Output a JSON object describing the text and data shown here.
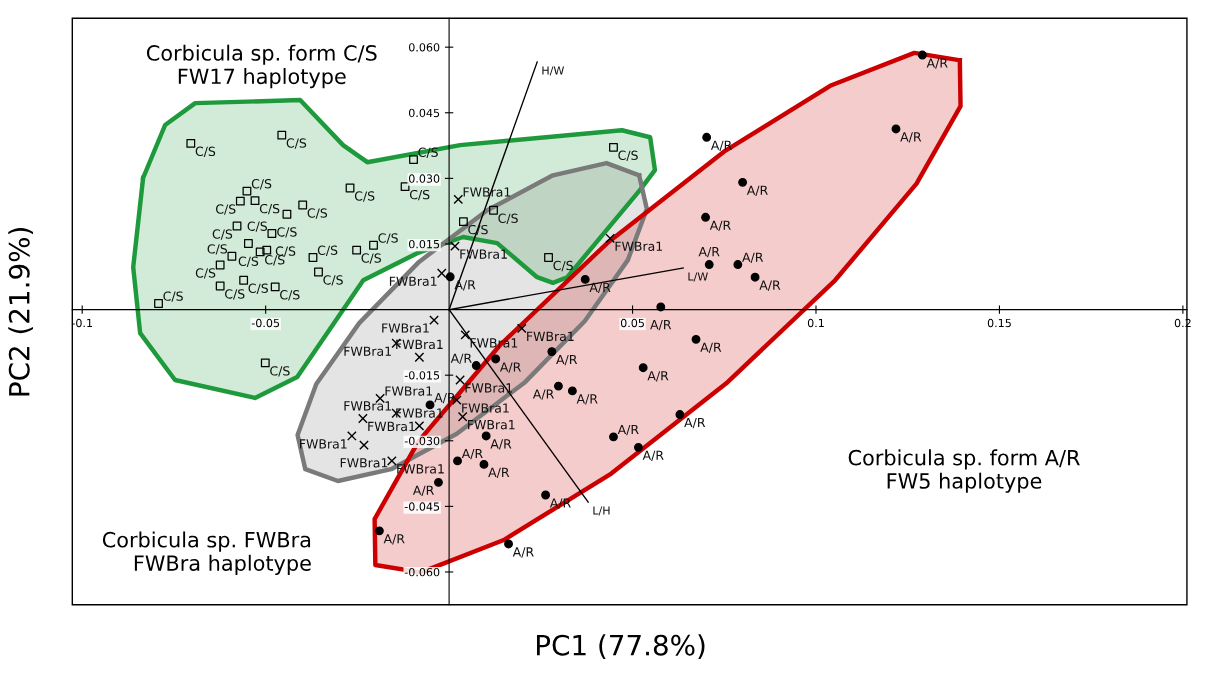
{
  "chart_data": {
    "type": "scatter",
    "xlabel": "PC1 (77.8%)",
    "ylabel": "PC2 (21.9%)",
    "xlim": [
      -0.1027,
      0.2011
    ],
    "ylim": [
      -0.0675,
      0.0666
    ],
    "xticks": [
      -0.1,
      -0.05,
      0.05,
      0.1,
      0.15,
      0.2
    ],
    "yticks": [
      {
        "value": 0.06,
        "label": "0.060"
      },
      {
        "value": 0.045,
        "label": "0.045"
      },
      {
        "value": 0.03,
        "label": "0.030"
      },
      {
        "value": 0.015,
        "label": "0.015"
      },
      {
        "value": -0.015,
        "label": "-0.015"
      },
      {
        "value": -0.03,
        "label": "-0.030"
      },
      {
        "value": -0.045,
        "label": "-0.045"
      },
      {
        "value": -0.06,
        "label": "-0.060"
      }
    ],
    "grid": false,
    "legend": false,
    "annotations": [
      "Corbicula sp. form C/S\nFW17 haplotype",
      "Corbicula sp. FWBra\nFWBra haplotype",
      "Corbicula sp. form A/R\nFW5 haplotype"
    ],
    "series": [
      {
        "type": "area",
        "color": "#1e9a3c",
        "x": [
          -0.0834,
          -0.0861,
          -0.0842,
          -0.0747,
          -0.0529,
          -0.0414,
          -0.0234,
          -0.0087,
          0.0038,
          0.0131,
          0.024,
          0.0283,
          0.0322,
          0.052,
          0.0561,
          0.0548,
          0.0471,
          0.003,
          -0.0223,
          -0.0289,
          -0.0406,
          -0.0692,
          -0.0774
        ],
        "values": [
          0.0301,
          0.0097,
          -0.0054,
          -0.0161,
          -0.0202,
          -0.0154,
          0.0067,
          0.0129,
          0.0166,
          0.0152,
          0.0074,
          0.0061,
          0.0074,
          0.0273,
          0.0319,
          0.0394,
          0.041,
          0.0376,
          0.0337,
          0.0376,
          0.0479,
          0.0472,
          0.0422
        ],
        "line_style": "solid"
      },
      {
        "type": "area",
        "color": "#7a7a7a",
        "x": [
          0.0518,
          0.0539,
          0.0487,
          0.037,
          0.0207,
          0.0021,
          -0.0158,
          -0.0303,
          -0.0392,
          -0.0413,
          -0.0362,
          -0.0245,
          -0.0082,
          0.0104,
          0.0283,
          0.0429
        ],
        "values": [
          0.0307,
          0.023,
          0.0113,
          -0.0026,
          -0.0166,
          -0.0284,
          -0.0365,
          -0.0392,
          -0.0365,
          -0.0287,
          -0.017,
          -0.0031,
          0.0109,
          0.0227,
          0.0307,
          0.0335
        ]
      },
      {
        "type": "area",
        "color": "#cc0000",
        "x": [
          0.1392,
          0.1394,
          0.1274,
          0.1052,
          0.0759,
          0.0442,
          0.0149,
          -0.0077,
          -0.0201,
          -0.0203,
          -0.0084,
          0.0139,
          0.0431,
          0.0749,
          0.1042,
          0.1268
        ],
        "values": [
          0.057,
          0.0465,
          0.0288,
          0.0067,
          -0.0166,
          -0.0375,
          -0.0527,
          -0.0601,
          -0.0584,
          -0.0479,
          -0.0302,
          -0.0081,
          0.0152,
          0.0361,
          0.0513,
          0.0587
        ]
      },
      {
        "type": "line",
        "color": "#000000",
        "x": [
          0,
          0.024
        ],
        "values": [
          0,
          0.0566
        ],
        "value_labels": [
          null,
          "H/W"
        ]
      },
      {
        "type": "line",
        "color": "#000000",
        "x": [
          0,
          0.0638
        ],
        "values": [
          0,
          0.0095
        ],
        "value_labels": [
          null,
          "L/W"
        ]
      },
      {
        "type": "line",
        "color": "#000000",
        "x": [
          0,
          0.0379
        ],
        "values": [
          0,
          -0.044
        ],
        "value_labels": [
          null,
          "L/H"
        ]
      },
      {
        "marker": "square",
        "color": "#000000",
        "x": [
          -0.0704,
          -0.0456,
          -0.0097,
          -0.012,
          -0.027,
          -0.0551,
          -0.0569,
          -0.0529,
          -0.0399,
          -0.0442,
          -0.0578,
          -0.0483,
          -0.0547,
          -0.0592,
          -0.0515,
          -0.0497,
          -0.0624,
          -0.056,
          -0.0624,
          -0.0474,
          -0.0371,
          -0.0356,
          -0.0252,
          -0.0206,
          -0.0792,
          -0.0501,
          0.0448,
          0.0121,
          0.0039,
          0.0271
        ],
        "values": [
          0.038,
          0.0399,
          0.0343,
          0.0281,
          0.0278,
          0.0271,
          0.0248,
          0.0249,
          0.0239,
          0.0218,
          0.0191,
          0.0174,
          0.0151,
          0.0122,
          0.0132,
          0.0136,
          0.0102,
          0.0067,
          0.0054,
          0.0052,
          0.0119,
          0.0086,
          0.0136,
          0.0147,
          0.0014,
          -0.0122,
          0.0371,
          0.0227,
          0.0201,
          0.0119
        ],
        "value_labels": [
          "C/S",
          "C/S",
          "C/S",
          "C/S",
          "C/S",
          "C/S",
          "C/S",
          "C/S",
          "C/S",
          "C/S",
          "C/S",
          "C/S",
          "C/S",
          "C/S",
          "C/S",
          "C/S",
          "C/S",
          "C/S",
          "C/S",
          "C/S",
          "C/S",
          "C/S",
          "C/S",
          "C/S",
          "C/S",
          "C/S",
          "C/S",
          "C/S",
          "C/S",
          "C/S"
        ]
      },
      {
        "marker": "cross",
        "color": "#000000",
        "x": [
          0.0025,
          0.0016,
          0.0439,
          -0.002,
          -0.0041,
          0.0044,
          -0.0144,
          -0.0081,
          0.003,
          -0.0188,
          -0.0144,
          -0.0235,
          0.0021,
          0.0037,
          -0.0081,
          -0.0265,
          -0.0232,
          -0.0156,
          0.0198
        ],
        "values": [
          0.0252,
          0.0145,
          0.0163,
          0.0083,
          -0.0024,
          -0.0058,
          -0.0077,
          -0.0109,
          -0.0161,
          -0.0203,
          -0.0237,
          -0.0249,
          -0.0207,
          -0.0245,
          -0.0266,
          -0.0289,
          -0.031,
          -0.0346,
          -0.0043
        ],
        "value_labels": [
          "FWBra1",
          "FWBra1",
          "FWBra1",
          "FWBra1",
          "FWBra1",
          "FWBra1",
          "FWBra1",
          "FWBra1",
          "FWBra1",
          "FWBra1",
          "FWBra1",
          "FWBra1",
          "FWBra1",
          "FWBra1",
          "FWBra1",
          "FWBra1",
          "FWBra1",
          "FWBra1",
          "FWBra1"
        ]
      },
      {
        "marker": "circle",
        "color": "#000000",
        "x": [
          0.0577,
          0.0673,
          0.028,
          0.0127,
          0.0074,
          0.0529,
          0.0298,
          0.0336,
          -0.0052,
          0.0629,
          0.0101,
          0.0448,
          0.0516,
          0.0023,
          0.0095,
          -0.0029,
          0.0263,
          -0.019,
          0.0162,
          0.0702,
          0.08,
          0.0699,
          0.0709,
          0.0787,
          0.0834,
          0.0371,
          0.0003,
          0.129,
          0.1218
        ],
        "values": [
          0.0006,
          -0.0068,
          -0.0096,
          -0.0113,
          -0.0128,
          -0.0133,
          -0.0175,
          -0.0186,
          -0.0218,
          -0.024,
          -0.0289,
          -0.0291,
          -0.0315,
          -0.0346,
          -0.0354,
          -0.0395,
          -0.0424,
          -0.0506,
          -0.0536,
          0.0394,
          0.0291,
          0.0211,
          0.0103,
          0.0103,
          0.0074,
          0.0069,
          0.0075,
          0.0582,
          0.0413
        ],
        "value_labels": [
          "A/R",
          "A/R",
          "A/R",
          "A/R",
          "A/R",
          "A/R",
          "A/R",
          "A/R",
          "A/R",
          "A/R",
          "A/R",
          "A/R",
          "A/R",
          "A/R",
          "A/R",
          "A/R",
          "A/R",
          "A/R",
          "A/R",
          "A/R",
          "A/R",
          "A/R",
          "A/R",
          "A/R",
          "A/R",
          "A/R",
          "A/R",
          "A/R",
          "A/R"
        ]
      }
    ]
  }
}
